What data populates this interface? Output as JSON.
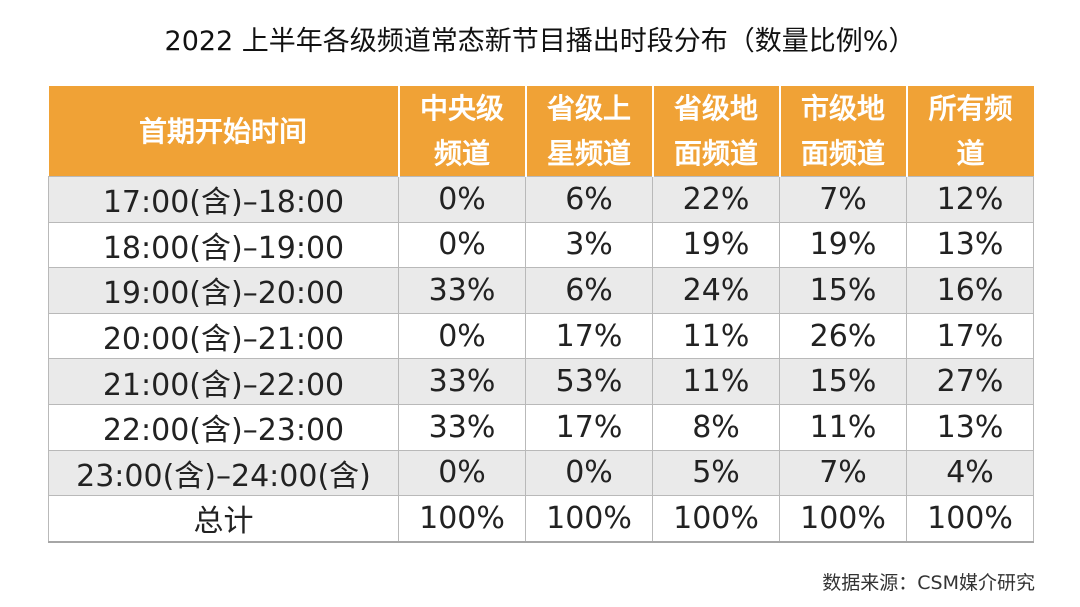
{
  "title": "2022 上半年各级频道常态新节目播出时段分布（数量比例%）",
  "source": "数据来源：CSM媒介研究",
  "colors": {
    "header_bg": "#f0a236",
    "header_text": "#ffffff",
    "row_alt_bg": "#eaeaea",
    "grid_line": "#b9b9b9"
  },
  "chart_data": {
    "type": "table",
    "title": "2022 上半年各级频道常态新节目播出时段分布（数量比例%）",
    "columns": [
      {
        "label": "首期开始时间",
        "lines": [
          "首期开始时间"
        ]
      },
      {
        "label": "中央级频道",
        "lines": [
          "中央级",
          "频道"
        ]
      },
      {
        "label": "省级上星频道",
        "lines": [
          "省级上",
          "星频道"
        ]
      },
      {
        "label": "省级地面频道",
        "lines": [
          "省级地",
          "面频道"
        ]
      },
      {
        "label": "市级地面频道",
        "lines": [
          "市级地",
          "面频道"
        ]
      },
      {
        "label": "所有频道",
        "lines": [
          "所有频",
          "道"
        ]
      }
    ],
    "rows": [
      [
        "17:00(含)–18:00",
        "0%",
        "6%",
        "22%",
        "7%",
        "12%"
      ],
      [
        "18:00(含)–19:00",
        "0%",
        "3%",
        "19%",
        "19%",
        "13%"
      ],
      [
        "19:00(含)–20:00",
        "33%",
        "6%",
        "24%",
        "15%",
        "16%"
      ],
      [
        "20:00(含)–21:00",
        "0%",
        "17%",
        "11%",
        "26%",
        "17%"
      ],
      [
        "21:00(含)–22:00",
        "33%",
        "53%",
        "11%",
        "15%",
        "27%"
      ],
      [
        "22:00(含)–23:00",
        "33%",
        "17%",
        "8%",
        "11%",
        "13%"
      ],
      [
        "23:00(含)–24:00(含)",
        "0%",
        "0%",
        "5%",
        "7%",
        "4%"
      ],
      [
        "总计",
        "100%",
        "100%",
        "100%",
        "100%",
        "100%"
      ]
    ]
  }
}
